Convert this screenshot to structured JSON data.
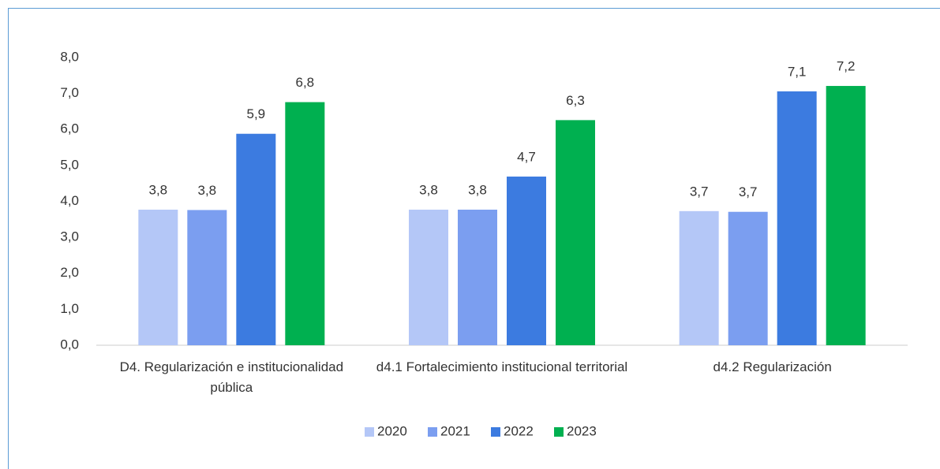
{
  "chart_data": {
    "type": "bar",
    "categories": [
      "D4. Regularización e institucionalidad pública",
      "d4.1 Fortalecimiento institucional territorial",
      "d4.2 Regularización"
    ],
    "series": [
      {
        "name": "2020",
        "color": "#b4c7f7",
        "values": [
          3.77,
          3.77,
          3.73
        ],
        "value_labels": [
          "3,8",
          "3,8",
          "3,7"
        ]
      },
      {
        "name": "2021",
        "color": "#7b9ef0",
        "values": [
          3.76,
          3.77,
          3.71
        ],
        "value_labels": [
          "3,8",
          "3,8",
          "3,7"
        ]
      },
      {
        "name": "2022",
        "color": "#3c7be0",
        "values": [
          5.88,
          4.69,
          7.06
        ],
        "value_labels": [
          "5,9",
          "4,7",
          "7,1"
        ]
      },
      {
        "name": "2023",
        "color": "#00b050",
        "values": [
          6.76,
          6.26,
          7.21
        ],
        "value_labels": [
          "6,8",
          "6,3",
          "7,2"
        ]
      }
    ],
    "ylim": [
      0,
      8
    ],
    "yticks": [
      {
        "value": 0,
        "label": "0,0"
      },
      {
        "value": 1,
        "label": "1,0"
      },
      {
        "value": 2,
        "label": "2,0"
      },
      {
        "value": 3,
        "label": "3,0"
      },
      {
        "value": 4,
        "label": "4,0"
      },
      {
        "value": 5,
        "label": "5,0"
      },
      {
        "value": 6,
        "label": "6,0"
      },
      {
        "value": 7,
        "label": "7,0"
      },
      {
        "value": 8,
        "label": "8,0"
      }
    ],
    "grid": false,
    "legend": "bottom"
  }
}
